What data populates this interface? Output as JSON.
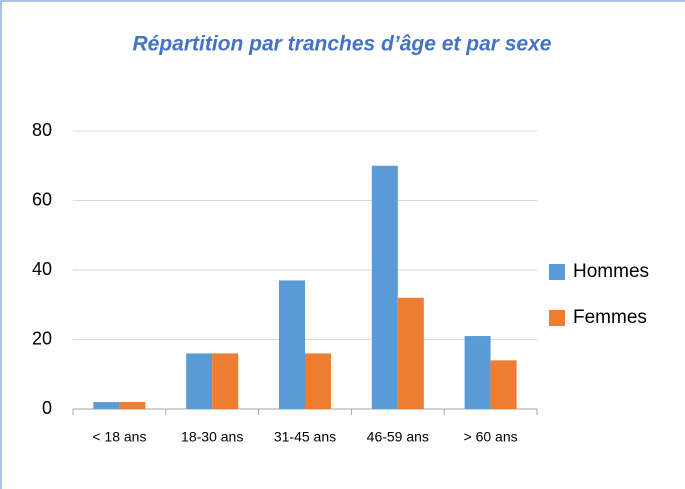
{
  "chart_data": {
    "type": "bar",
    "title": "Répartition par tranches d’âge et par sexe",
    "categories": [
      "< 18 ans",
      "18-30 ans",
      "31-45 ans",
      "46-59 ans",
      "> 60 ans"
    ],
    "series": [
      {
        "name": "Hommes",
        "color": "#5b9bd5",
        "values": [
          2,
          16,
          37,
          70,
          21
        ]
      },
      {
        "name": "Femmes",
        "color": "#ed7d31",
        "values": [
          2,
          16,
          16,
          32,
          14
        ]
      }
    ],
    "ylim": [
      0,
      80
    ],
    "yticks": [
      0,
      20,
      40,
      60,
      80
    ],
    "grid": true,
    "legend": "right"
  }
}
